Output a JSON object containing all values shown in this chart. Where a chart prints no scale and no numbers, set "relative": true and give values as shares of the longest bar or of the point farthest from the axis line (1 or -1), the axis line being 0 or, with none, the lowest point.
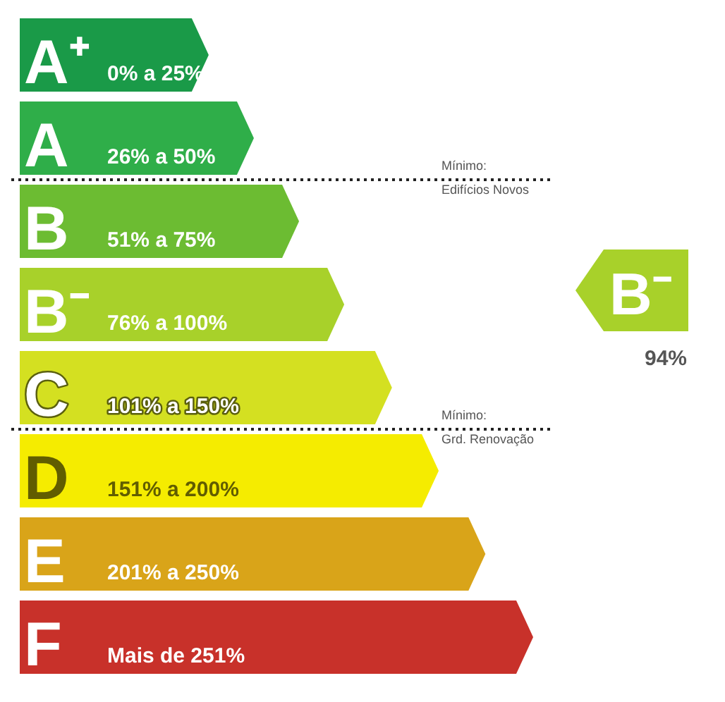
{
  "chart_data": {
    "type": "bar",
    "orientation": "horizontal",
    "relative": true,
    "categories": [
      "A⁺",
      "A",
      "B",
      "B⁻",
      "C",
      "D",
      "E",
      "F"
    ],
    "values": [
      0.368,
      0.456,
      0.544,
      0.632,
      0.725,
      0.816,
      0.907,
      1
    ],
    "colors": [
      "#1a9a48",
      "#2fae49",
      "#6cbc32",
      "#a8d12a",
      "#d4e021",
      "#f5ec00",
      "#d9a419",
      "#c8312a"
    ],
    "needle": "B⁻",
    "annotations": [
      "0% a 25%",
      "26% a 50%",
      "51% a 75%",
      "76% a 100%",
      "101% a 150%",
      "151% a 200%",
      "201% a 250%",
      "Mais de 251%",
      "94%",
      "Mínimo:\nEdifícios Novos",
      "Mínimo:\nGrd. Renovação"
    ]
  }
}
